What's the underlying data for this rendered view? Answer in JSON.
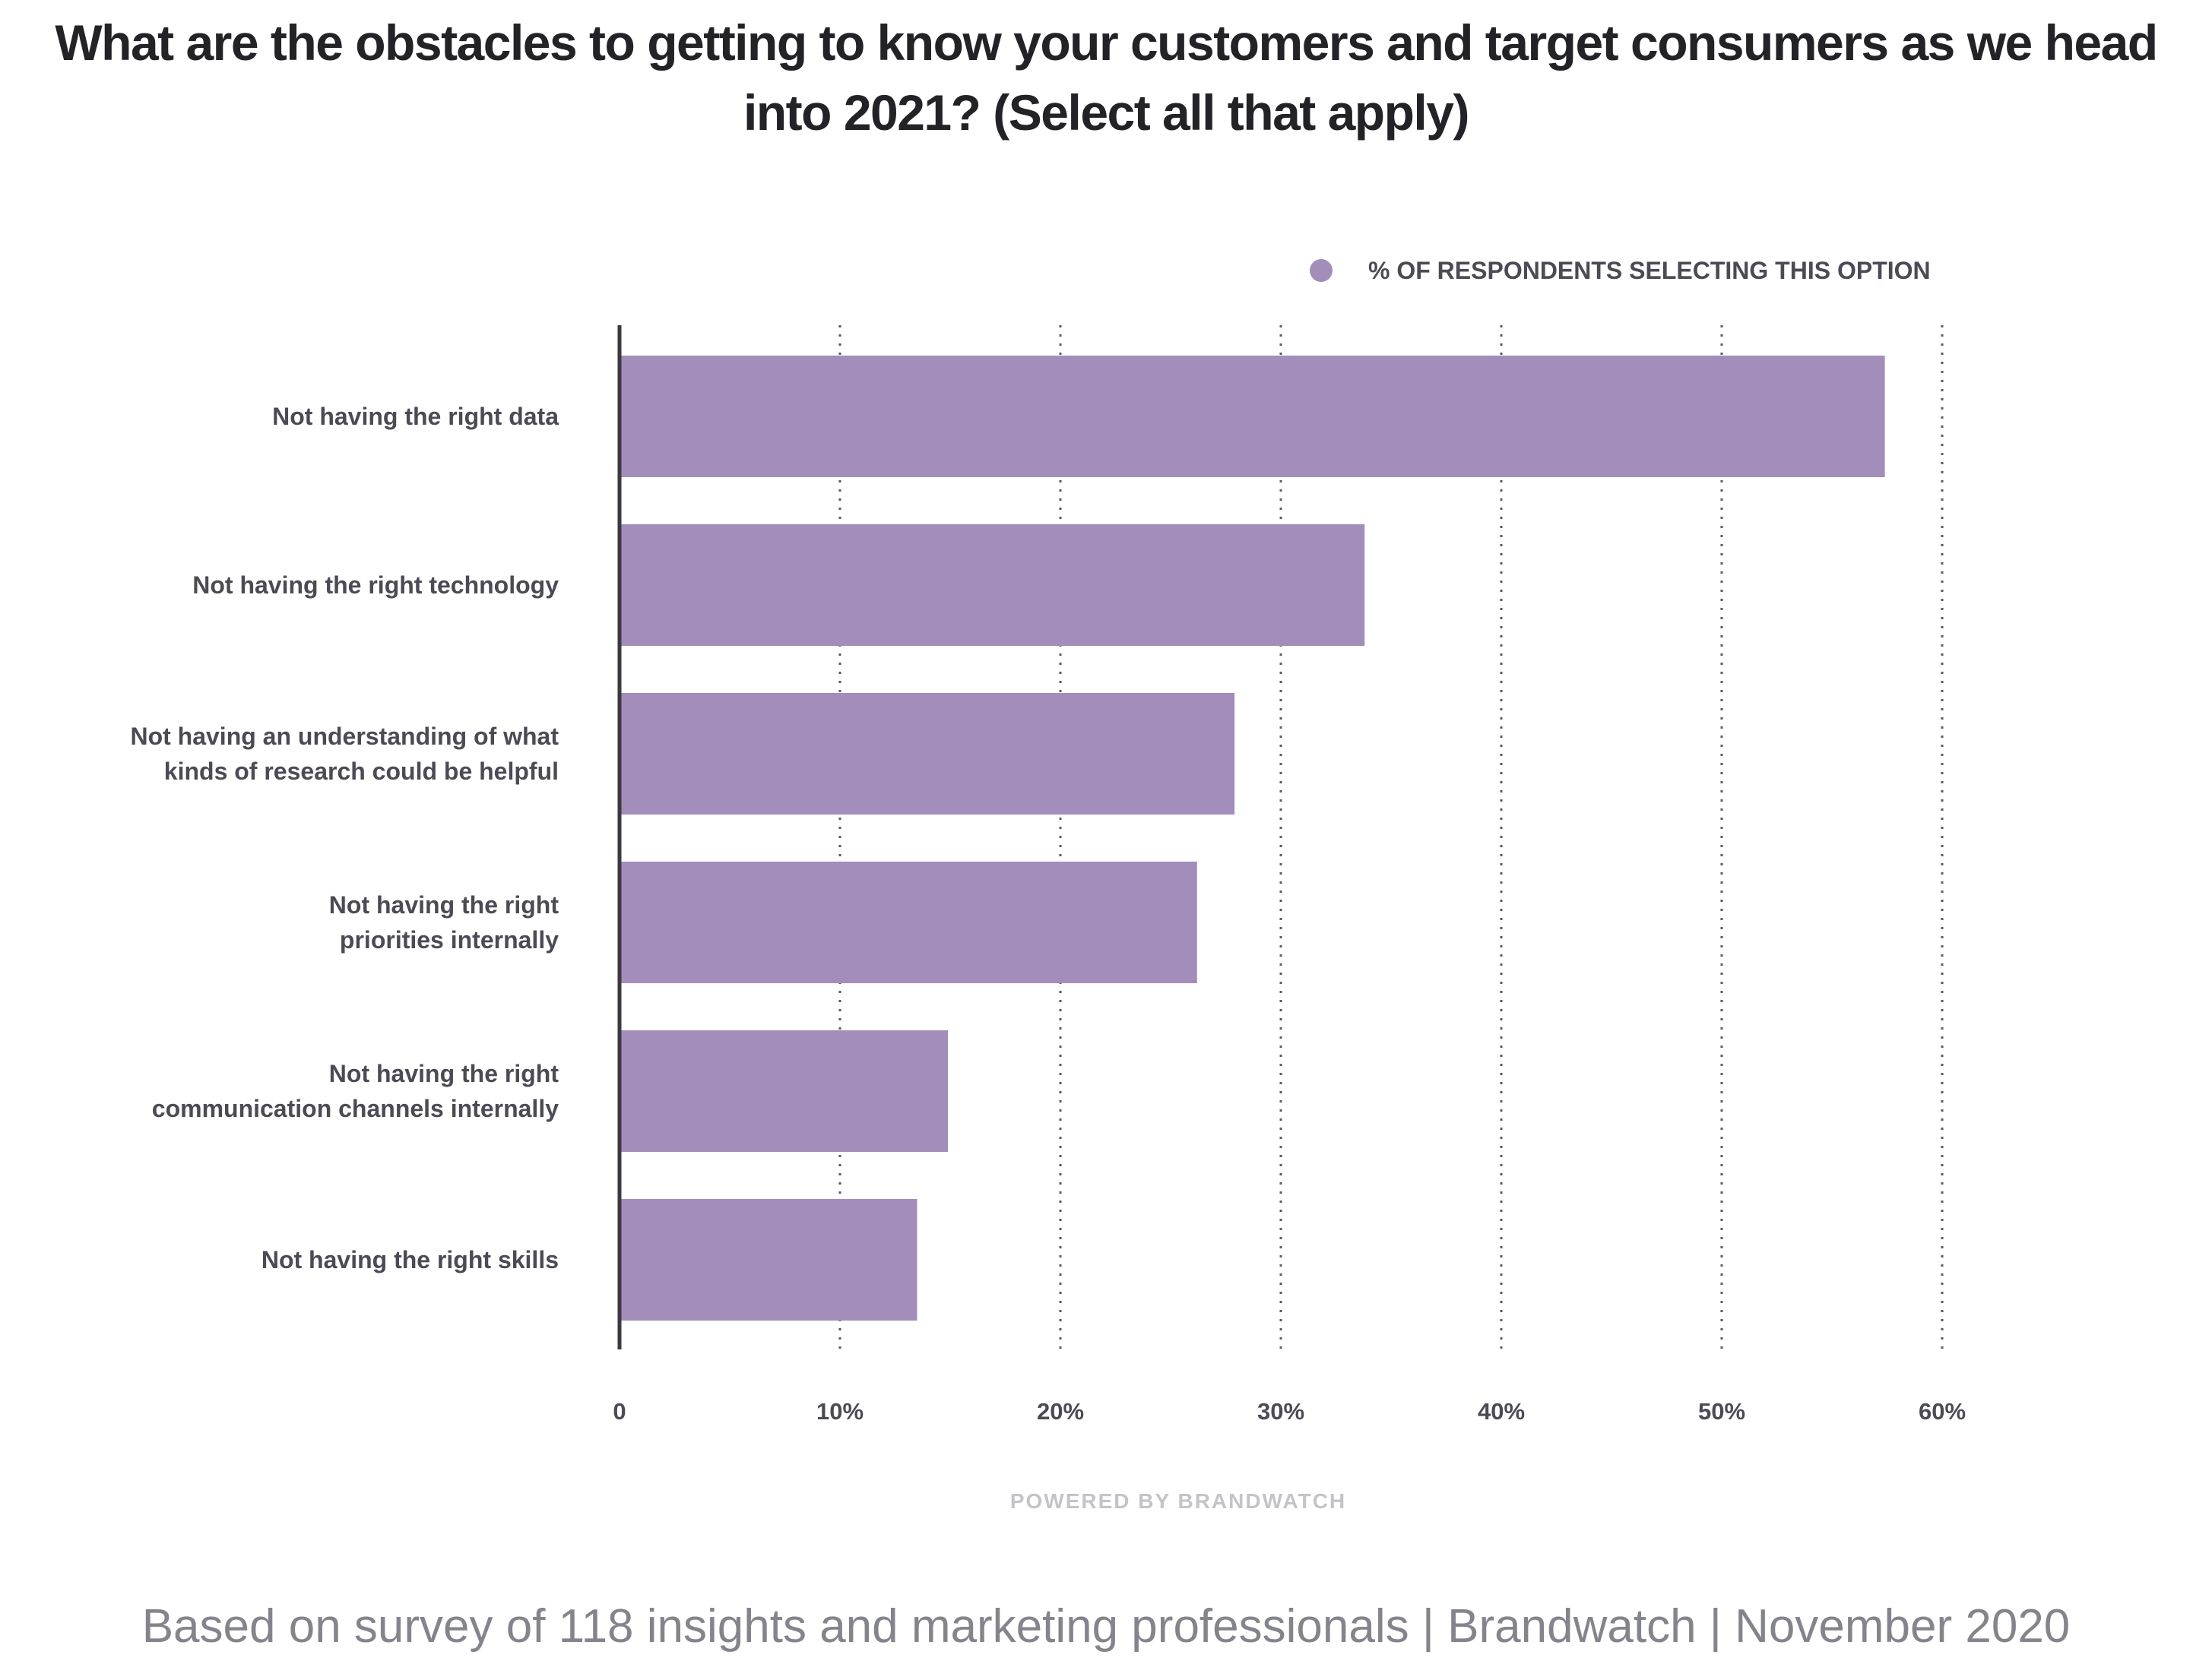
{
  "title": "What are the obstacles to getting to know your customers and target consumers as we head into 2021? (Select all that apply)",
  "legend": {
    "label": "% OF RESPONDENTS SELECTING THIS OPTION",
    "color": "#a38dba"
  },
  "powered_by": "POWERED BY BRANDWATCH",
  "footnote": "Based on survey of 118 insights and marketing professionals | Brandwatch | November 2020",
  "chart_data": {
    "type": "bar",
    "orientation": "horizontal",
    "title": "What are the obstacles to getting to know your customers and target consumers as we head into 2021? (Select all that apply)",
    "categories": [
      [
        "Not having the right data"
      ],
      [
        "Not having the right technology"
      ],
      [
        "Not having an understanding of what",
        "kinds of research could be helpful"
      ],
      [
        "Not having the right",
        "priorities internally"
      ],
      [
        "Not having the right",
        "communication channels internally"
      ],
      [
        "Not having the right skills"
      ]
    ],
    "series": [
      {
        "name": "% OF RESPONDENTS SELECTING THIS OPTION",
        "color": "#a38dba",
        "values": [
          57.4,
          33.8,
          27.9,
          26.2,
          14.9,
          13.5
        ]
      }
    ],
    "xlim": [
      0,
      60
    ],
    "xticks": [
      0,
      10,
      20,
      30,
      40,
      50,
      60
    ],
    "xtick_labels": [
      "0",
      "10%",
      "20%",
      "30%",
      "40%",
      "50%",
      "60%"
    ],
    "grid": "vertical dotted",
    "legend_position": "top-right"
  }
}
